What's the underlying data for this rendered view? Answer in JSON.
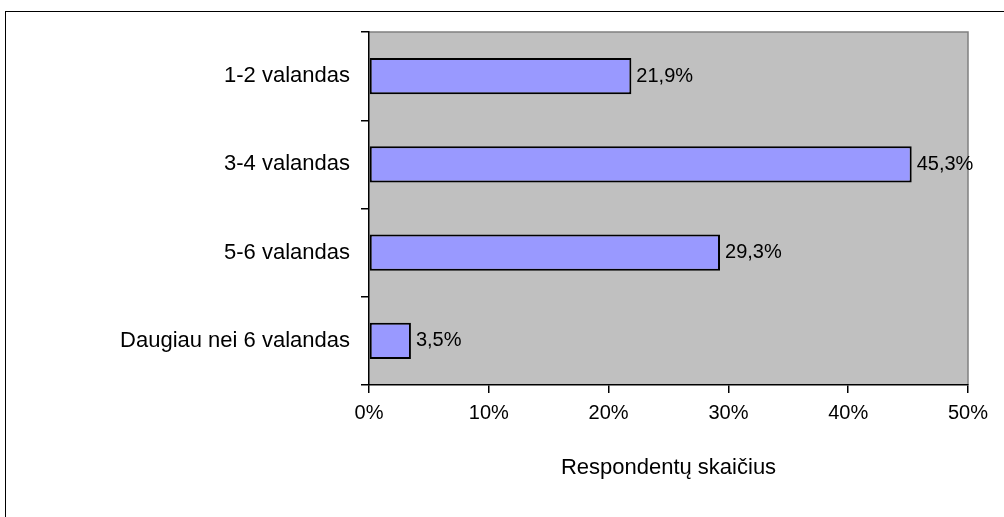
{
  "chart_data": {
    "type": "bar",
    "orientation": "horizontal",
    "categories": [
      "1-2 valandas",
      "3-4 valandas",
      "5-6 valandas",
      "Daugiau nei 6 valandas"
    ],
    "values": [
      21.9,
      45.3,
      29.3,
      3.5
    ],
    "color": "#9999ff",
    "value_labels": [
      "21,9%",
      "45,3%",
      "29,3%",
      "3,5%"
    ],
    "xlabel": "Respondentų skaičius",
    "xlim": [
      0,
      50
    ],
    "xticks": [
      {
        "value": 0,
        "label": "0%"
      },
      {
        "value": 10,
        "label": "10%"
      },
      {
        "value": 20,
        "label": "20%"
      },
      {
        "value": 30,
        "label": "30%"
      },
      {
        "value": 40,
        "label": "40%"
      },
      {
        "value": 50,
        "label": "50%"
      }
    ],
    "grid": false
  }
}
